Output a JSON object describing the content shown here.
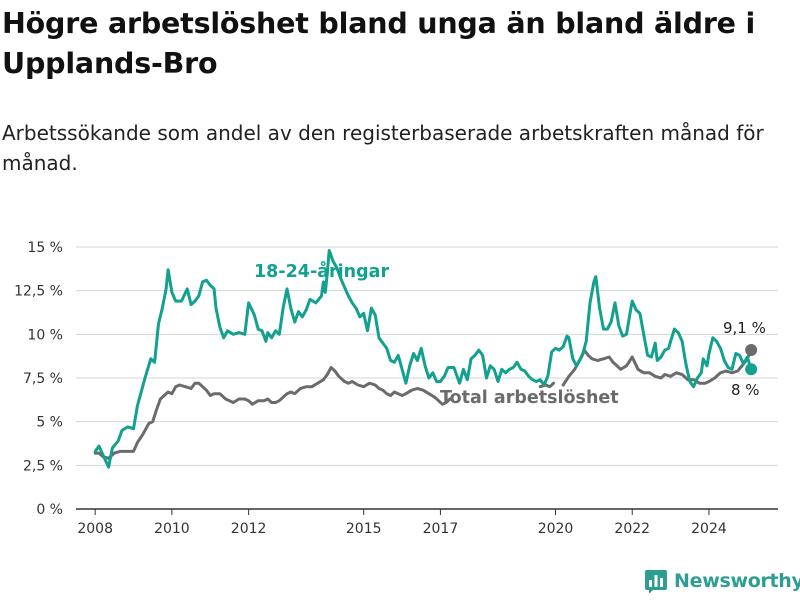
{
  "title": "Högre arbetslöshet bland unga än bland äldre i Upplands-Bro",
  "subtitle": "Arbetssökande som andel av den registerbaserade arbetskraften månad för månad.",
  "brand": {
    "name": "Newsworthy",
    "color": "#2e9e93"
  },
  "chart_data": {
    "type": "line",
    "ylim": [
      0,
      15
    ],
    "xlim": [
      2007.5,
      2025.8
    ],
    "grid": true,
    "yticks": [
      {
        "value": 0,
        "label": "0 %"
      },
      {
        "value": 2.5,
        "label": "2,5 %"
      },
      {
        "value": 5,
        "label": "5 %"
      },
      {
        "value": 7.5,
        "label": "7,5 %"
      },
      {
        "value": 10,
        "label": "10 %"
      },
      {
        "value": 12.5,
        "label": "12,5 %"
      },
      {
        "value": 15,
        "label": "15 %"
      }
    ],
    "xticks": [
      {
        "value": 2008,
        "label": "2008"
      },
      {
        "value": 2010,
        "label": "2010"
      },
      {
        "value": 2012,
        "label": "2012"
      },
      {
        "value": 2015,
        "label": "2015"
      },
      {
        "value": 2017,
        "label": "2017"
      },
      {
        "value": 2020,
        "label": "2020"
      },
      {
        "value": 2022,
        "label": "2022"
      },
      {
        "value": 2024,
        "label": "2024"
      }
    ],
    "series": [
      {
        "name": "18-24-åringar",
        "color": "#12a08f",
        "end_label": "8 %",
        "points": [
          [
            2008.0,
            3.3
          ],
          [
            2008.1,
            3.6
          ],
          [
            2008.2,
            3.1
          ],
          [
            2008.35,
            2.4
          ],
          [
            2008.45,
            3.5
          ],
          [
            2008.6,
            3.9
          ],
          [
            2008.7,
            4.5
          ],
          [
            2008.85,
            4.7
          ],
          [
            2009.0,
            4.6
          ],
          [
            2009.1,
            5.9
          ],
          [
            2009.3,
            7.5
          ],
          [
            2009.45,
            8.6
          ],
          [
            2009.55,
            8.4
          ],
          [
            2009.65,
            10.6
          ],
          [
            2009.75,
            11.5
          ],
          [
            2009.85,
            12.6
          ],
          [
            2009.9,
            13.7
          ],
          [
            2010.0,
            12.4
          ],
          [
            2010.1,
            11.9
          ],
          [
            2010.25,
            11.9
          ],
          [
            2010.4,
            12.6
          ],
          [
            2010.5,
            11.7
          ],
          [
            2010.6,
            11.9
          ],
          [
            2010.7,
            12.2
          ],
          [
            2010.8,
            13.0
          ],
          [
            2010.9,
            13.1
          ],
          [
            2011.0,
            12.8
          ],
          [
            2011.1,
            12.6
          ],
          [
            2011.15,
            11.5
          ],
          [
            2011.25,
            10.4
          ],
          [
            2011.35,
            9.8
          ],
          [
            2011.45,
            10.2
          ],
          [
            2011.6,
            10.0
          ],
          [
            2011.75,
            10.1
          ],
          [
            2011.9,
            10.0
          ],
          [
            2012.0,
            11.8
          ],
          [
            2012.15,
            11.1
          ],
          [
            2012.25,
            10.3
          ],
          [
            2012.35,
            10.2
          ],
          [
            2012.45,
            9.6
          ],
          [
            2012.5,
            10.1
          ],
          [
            2012.6,
            9.8
          ],
          [
            2012.7,
            10.2
          ],
          [
            2012.8,
            10.0
          ],
          [
            2012.9,
            11.5
          ],
          [
            2013.0,
            12.6
          ],
          [
            2013.1,
            11.5
          ],
          [
            2013.2,
            10.7
          ],
          [
            2013.3,
            11.3
          ],
          [
            2013.4,
            11.0
          ],
          [
            2013.5,
            11.4
          ],
          [
            2013.6,
            12.0
          ],
          [
            2013.75,
            11.8
          ],
          [
            2013.9,
            12.2
          ],
          [
            2013.95,
            13.0
          ],
          [
            2014.0,
            12.4
          ],
          [
            2014.05,
            13.5
          ],
          [
            2014.1,
            14.8
          ],
          [
            2014.2,
            14.2
          ],
          [
            2014.3,
            13.8
          ],
          [
            2014.4,
            13.2
          ],
          [
            2014.5,
            12.7
          ],
          [
            2014.6,
            12.2
          ],
          [
            2014.7,
            11.8
          ],
          [
            2014.8,
            11.5
          ],
          [
            2014.9,
            11.0
          ],
          [
            2015.0,
            11.2
          ],
          [
            2015.1,
            10.2
          ],
          [
            2015.2,
            11.5
          ],
          [
            2015.3,
            11.1
          ],
          [
            2015.4,
            9.8
          ],
          [
            2015.5,
            9.5
          ],
          [
            2015.6,
            9.2
          ],
          [
            2015.7,
            8.5
          ],
          [
            2015.8,
            8.4
          ],
          [
            2015.9,
            8.8
          ],
          [
            2016.0,
            8.0
          ],
          [
            2016.1,
            7.2
          ],
          [
            2016.2,
            8.2
          ],
          [
            2016.3,
            8.9
          ],
          [
            2016.4,
            8.5
          ],
          [
            2016.5,
            9.2
          ],
          [
            2016.6,
            8.2
          ],
          [
            2016.7,
            7.5
          ],
          [
            2016.8,
            7.8
          ],
          [
            2016.9,
            7.3
          ],
          [
            2017.0,
            7.3
          ],
          [
            2017.1,
            7.6
          ],
          [
            2017.2,
            8.1
          ],
          [
            2017.35,
            8.1
          ],
          [
            2017.5,
            7.2
          ],
          [
            2017.6,
            8.0
          ],
          [
            2017.7,
            7.4
          ],
          [
            2017.8,
            8.6
          ],
          [
            2017.9,
            8.8
          ],
          [
            2018.0,
            9.1
          ],
          [
            2018.1,
            8.8
          ],
          [
            2018.2,
            7.5
          ],
          [
            2018.3,
            8.2
          ],
          [
            2018.4,
            8.0
          ],
          [
            2018.5,
            7.3
          ],
          [
            2018.6,
            8.0
          ],
          [
            2018.7,
            7.8
          ],
          [
            2018.8,
            8.0
          ],
          [
            2018.9,
            8.1
          ],
          [
            2019.0,
            8.4
          ],
          [
            2019.1,
            8.0
          ],
          [
            2019.2,
            7.9
          ],
          [
            2019.3,
            7.6
          ],
          [
            2019.4,
            7.4
          ],
          [
            2019.5,
            7.3
          ],
          [
            2019.6,
            7.4
          ],
          [
            2019.7,
            7.1
          ],
          [
            2019.8,
            7.6
          ],
          [
            2019.9,
            9.0
          ],
          [
            2020.0,
            9.2
          ],
          [
            2020.1,
            9.1
          ],
          [
            2020.2,
            9.3
          ],
          [
            2020.3,
            9.9
          ],
          [
            2020.35,
            9.8
          ],
          [
            2020.45,
            8.6
          ],
          [
            2020.55,
            8.2
          ],
          [
            2020.7,
            8.8
          ],
          [
            2020.8,
            9.6
          ],
          [
            2020.9,
            11.8
          ],
          [
            2021.0,
            13.0
          ],
          [
            2021.05,
            13.3
          ],
          [
            2021.15,
            11.5
          ],
          [
            2021.25,
            10.3
          ],
          [
            2021.35,
            10.3
          ],
          [
            2021.45,
            10.7
          ],
          [
            2021.55,
            11.8
          ],
          [
            2021.65,
            10.5
          ],
          [
            2021.75,
            9.9
          ],
          [
            2021.85,
            10.0
          ],
          [
            2021.95,
            11.3
          ],
          [
            2022.0,
            11.9
          ],
          [
            2022.1,
            11.4
          ],
          [
            2022.2,
            11.2
          ],
          [
            2022.3,
            10.0
          ],
          [
            2022.4,
            8.8
          ],
          [
            2022.5,
            8.7
          ],
          [
            2022.6,
            9.5
          ],
          [
            2022.65,
            8.5
          ],
          [
            2022.75,
            8.7
          ],
          [
            2022.85,
            9.1
          ],
          [
            2022.95,
            9.2
          ],
          [
            2023.0,
            9.6
          ],
          [
            2023.1,
            10.3
          ],
          [
            2023.2,
            10.1
          ],
          [
            2023.3,
            9.6
          ],
          [
            2023.4,
            8.3
          ],
          [
            2023.5,
            7.3
          ],
          [
            2023.6,
            7.0
          ],
          [
            2023.7,
            7.5
          ],
          [
            2023.8,
            7.8
          ],
          [
            2023.85,
            8.6
          ],
          [
            2023.95,
            8.2
          ],
          [
            2024.0,
            8.9
          ],
          [
            2024.1,
            9.8
          ],
          [
            2024.2,
            9.6
          ],
          [
            2024.3,
            9.2
          ],
          [
            2024.4,
            8.5
          ],
          [
            2024.5,
            8.1
          ],
          [
            2024.6,
            8.0
          ],
          [
            2024.7,
            8.9
          ],
          [
            2024.8,
            8.8
          ],
          [
            2024.9,
            8.3
          ],
          [
            2025.0,
            8.7
          ],
          [
            2025.1,
            8.0
          ]
        ]
      },
      {
        "name": "Total arbetslöshet",
        "color": "#6b6b6d",
        "end_label": "9,1 %",
        "points": [
          [
            2008.0,
            3.2
          ],
          [
            2008.1,
            3.2
          ],
          [
            2008.2,
            3.0
          ],
          [
            2008.35,
            2.9
          ],
          [
            2008.5,
            3.2
          ],
          [
            2008.65,
            3.3
          ],
          [
            2008.8,
            3.3
          ],
          [
            2009.0,
            3.3
          ],
          [
            2009.1,
            3.8
          ],
          [
            2009.25,
            4.3
          ],
          [
            2009.4,
            4.9
          ],
          [
            2009.5,
            5.0
          ],
          [
            2009.6,
            5.7
          ],
          [
            2009.7,
            6.3
          ],
          [
            2009.8,
            6.5
          ],
          [
            2009.9,
            6.7
          ],
          [
            2010.0,
            6.6
          ],
          [
            2010.1,
            7.0
          ],
          [
            2010.2,
            7.1
          ],
          [
            2010.35,
            7.0
          ],
          [
            2010.5,
            6.9
          ],
          [
            2010.6,
            7.2
          ],
          [
            2010.7,
            7.2
          ],
          [
            2010.8,
            7.0
          ],
          [
            2010.9,
            6.8
          ],
          [
            2011.0,
            6.5
          ],
          [
            2011.1,
            6.6
          ],
          [
            2011.25,
            6.6
          ],
          [
            2011.4,
            6.3
          ],
          [
            2011.5,
            6.2
          ],
          [
            2011.6,
            6.1
          ],
          [
            2011.75,
            6.3
          ],
          [
            2011.9,
            6.3
          ],
          [
            2012.0,
            6.2
          ],
          [
            2012.1,
            6.0
          ],
          [
            2012.25,
            6.2
          ],
          [
            2012.4,
            6.2
          ],
          [
            2012.5,
            6.3
          ],
          [
            2012.6,
            6.1
          ],
          [
            2012.7,
            6.1
          ],
          [
            2012.8,
            6.2
          ],
          [
            2012.9,
            6.4
          ],
          [
            2013.0,
            6.6
          ],
          [
            2013.1,
            6.7
          ],
          [
            2013.2,
            6.6
          ],
          [
            2013.35,
            6.9
          ],
          [
            2013.5,
            7.0
          ],
          [
            2013.65,
            7.0
          ],
          [
            2013.8,
            7.2
          ],
          [
            2013.95,
            7.4
          ],
          [
            2014.05,
            7.7
          ],
          [
            2014.15,
            8.1
          ],
          [
            2014.25,
            7.9
          ],
          [
            2014.35,
            7.6
          ],
          [
            2014.5,
            7.3
          ],
          [
            2014.6,
            7.2
          ],
          [
            2014.7,
            7.3
          ],
          [
            2014.85,
            7.1
          ],
          [
            2015.0,
            7.0
          ],
          [
            2015.15,
            7.2
          ],
          [
            2015.3,
            7.1
          ],
          [
            2015.4,
            6.9
          ],
          [
            2015.5,
            6.8
          ],
          [
            2015.6,
            6.6
          ],
          [
            2015.7,
            6.5
          ],
          [
            2015.8,
            6.7
          ],
          [
            2015.9,
            6.6
          ],
          [
            2016.0,
            6.5
          ],
          [
            2016.1,
            6.6
          ],
          [
            2016.25,
            6.8
          ],
          [
            2016.4,
            6.9
          ],
          [
            2016.55,
            6.8
          ],
          [
            2016.7,
            6.6
          ],
          [
            2016.85,
            6.4
          ],
          [
            2016.95,
            6.2
          ],
          [
            2017.05,
            6.0
          ],
          [
            2017.15,
            6.1
          ],
          [
            2017.25,
            6.3
          ]
        ],
        "points2": [
          [
            2019.6,
            7.0
          ],
          [
            2019.75,
            7.1
          ],
          [
            2019.85,
            7.0
          ],
          [
            2019.95,
            7.2
          ]
        ],
        "points3": [
          [
            2020.2,
            7.1
          ],
          [
            2020.35,
            7.6
          ],
          [
            2020.5,
            8.0
          ],
          [
            2020.65,
            8.6
          ],
          [
            2020.75,
            9.1
          ],
          [
            2020.85,
            8.8
          ],
          [
            2020.95,
            8.6
          ],
          [
            2021.1,
            8.5
          ],
          [
            2021.25,
            8.6
          ],
          [
            2021.4,
            8.7
          ],
          [
            2021.5,
            8.4
          ],
          [
            2021.6,
            8.2
          ],
          [
            2021.7,
            8.0
          ],
          [
            2021.85,
            8.2
          ],
          [
            2022.0,
            8.7
          ],
          [
            2022.15,
            8.0
          ],
          [
            2022.3,
            7.8
          ],
          [
            2022.45,
            7.8
          ],
          [
            2022.6,
            7.6
          ],
          [
            2022.75,
            7.5
          ],
          [
            2022.85,
            7.7
          ],
          [
            2023.0,
            7.6
          ],
          [
            2023.15,
            7.8
          ],
          [
            2023.3,
            7.7
          ],
          [
            2023.45,
            7.4
          ],
          [
            2023.6,
            7.4
          ],
          [
            2023.75,
            7.2
          ],
          [
            2023.9,
            7.2
          ],
          [
            2024.0,
            7.3
          ],
          [
            2024.15,
            7.5
          ],
          [
            2024.3,
            7.8
          ],
          [
            2024.45,
            7.9
          ],
          [
            2024.6,
            7.8
          ],
          [
            2024.75,
            7.9
          ],
          [
            2024.9,
            8.3
          ],
          [
            2025.0,
            8.6
          ],
          [
            2025.1,
            9.1
          ]
        ]
      }
    ]
  }
}
